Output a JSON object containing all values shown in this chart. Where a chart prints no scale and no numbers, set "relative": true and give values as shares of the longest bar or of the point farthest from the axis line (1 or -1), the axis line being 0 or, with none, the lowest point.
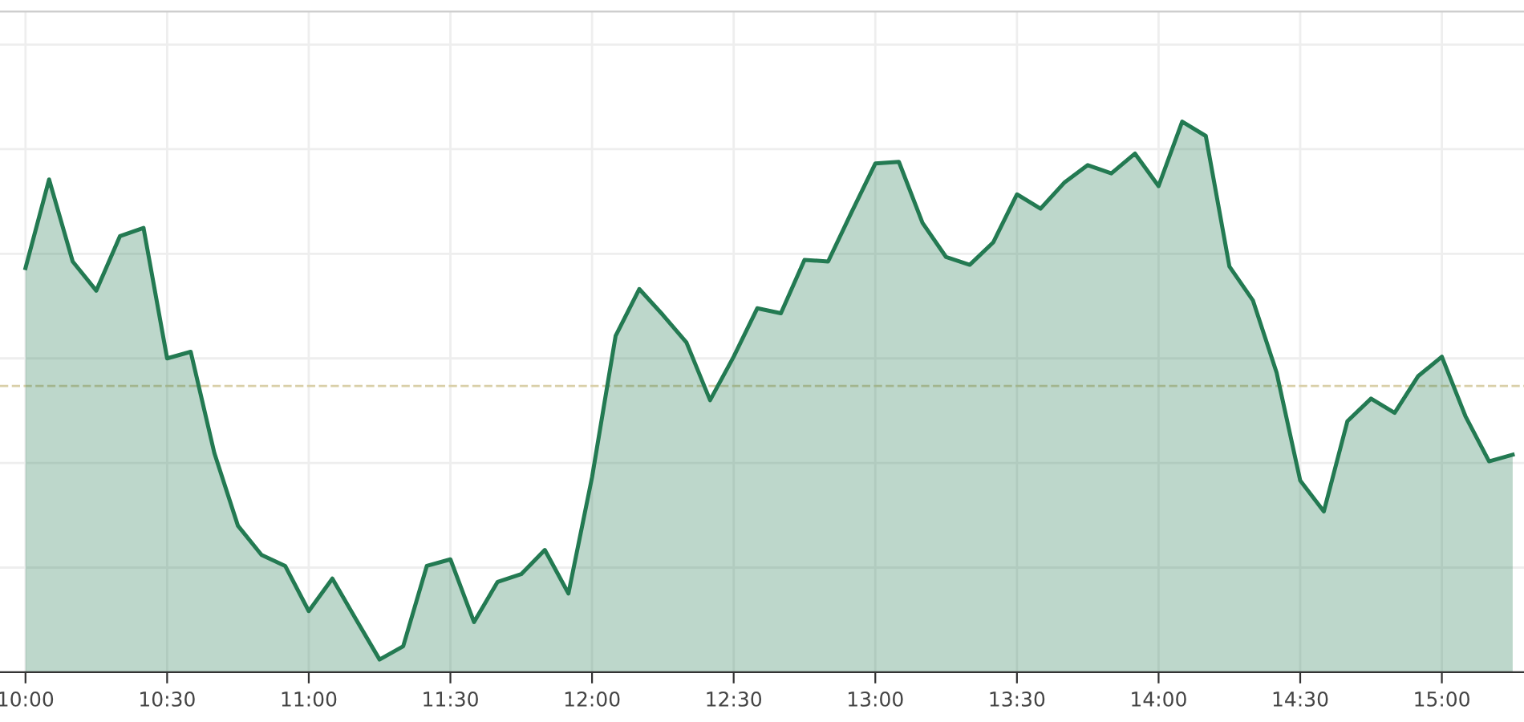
{
  "chart_data": {
    "type": "area",
    "relative": true,
    "x": [
      10.0,
      10.0833,
      10.1667,
      10.25,
      10.3333,
      10.4167,
      10.5,
      10.5833,
      10.6667,
      10.75,
      10.8333,
      10.9167,
      11.0,
      11.0833,
      11.1667,
      11.25,
      11.3333,
      11.4167,
      11.5,
      11.5833,
      11.6667,
      11.75,
      11.8333,
      11.9167,
      12.0,
      12.0833,
      12.1667,
      12.25,
      12.3333,
      12.4167,
      12.5,
      12.5833,
      12.6667,
      12.75,
      12.8333,
      12.9167,
      13.0,
      13.0833,
      13.1667,
      13.25,
      13.3333,
      13.4167,
      13.5,
      13.5833,
      13.6667,
      13.75,
      13.8333,
      13.9167,
      14.0,
      14.0833,
      14.1667,
      14.25,
      14.3333,
      14.4167,
      14.5,
      14.5833,
      14.6667,
      14.75,
      14.8333,
      14.9167,
      15.0,
      15.0833,
      15.1667,
      15.25
    ],
    "series": [
      {
        "color": "#237a52",
        "values": [
          0.734,
          0.895,
          0.746,
          0.693,
          0.792,
          0.807,
          0.57,
          0.582,
          0.398,
          0.266,
          0.213,
          0.193,
          0.111,
          0.17,
          0.096,
          0.023,
          0.047,
          0.193,
          0.205,
          0.091,
          0.164,
          0.178,
          0.222,
          0.143,
          0.354,
          0.611,
          0.696,
          0.649,
          0.599,
          0.494,
          0.573,
          0.661,
          0.652,
          0.749,
          0.746,
          0.836,
          0.924,
          0.927,
          0.816,
          0.754,
          0.74,
          0.781,
          0.868,
          0.842,
          0.889,
          0.921,
          0.906,
          0.942,
          0.883,
          1.0,
          0.974,
          0.737,
          0.675,
          0.544,
          0.348,
          0.292,
          0.456,
          0.497,
          0.471,
          0.538,
          0.573,
          0.465,
          0.383,
          0.395
        ]
      }
    ],
    "xlim": [
      9.91,
      15.29
    ],
    "xticks": [
      {
        "value": 10.0,
        "label": "10:00"
      },
      {
        "value": 10.5,
        "label": "10:30"
      },
      {
        "value": 11.0,
        "label": "11:00"
      },
      {
        "value": 11.5,
        "label": "11:30"
      },
      {
        "value": 12.0,
        "label": "12:00"
      },
      {
        "value": 12.5,
        "label": "12:30"
      },
      {
        "value": 13.0,
        "label": "13:00"
      },
      {
        "value": 13.5,
        "label": "13:30"
      },
      {
        "value": 14.0,
        "label": "14:00"
      },
      {
        "value": 14.5,
        "label": "14:30"
      },
      {
        "value": 15.0,
        "label": "15:00"
      }
    ],
    "ref_lines": [
      {
        "axis": "y",
        "value": 0.52,
        "color": "#d9cfa8",
        "line_style": "dashed"
      }
    ],
    "grid": true,
    "line_style": "solid",
    "marker": "none"
  }
}
